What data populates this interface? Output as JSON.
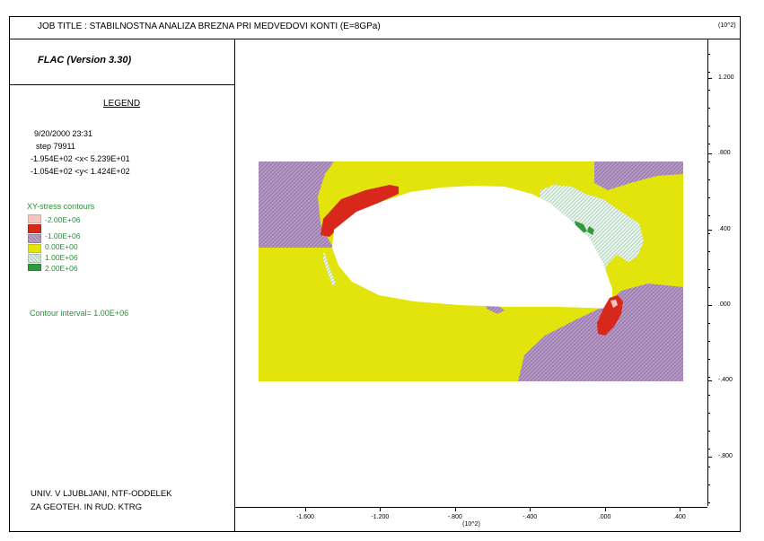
{
  "header": {
    "job_title": "JOB TITLE :  STABILNOSTNA ANALIZA BREZNA PRI MEDVEDOVI KONTI (E=8GPa)",
    "version": "FLAC (Version 3.30)"
  },
  "legend": {
    "heading": "LEGEND",
    "date": "9/20/2000  23:31",
    "step": "step  79911",
    "x_range": "-1.954E+02 <x<  5.239E+01",
    "y_range": "-1.054E+02 <y<  1.424E+02",
    "contours_title": "XY-stress contours",
    "contour_interval": "Contour interval=  1.00E+06",
    "items": [
      {
        "label": "-2.00E+06",
        "color": "#f5c6c0"
      },
      {
        "label": "-1.00E+06",
        "color": "#d8281c"
      },
      {
        "label": "0.00E+00",
        "color": "#a889b8"
      },
      {
        "label": "1.00E+06",
        "color": "#e3e40c"
      },
      {
        "label": "2.00E+06",
        "color": "#cfe6d6"
      },
      {
        "label": "",
        "color": "#2f9a3a"
      }
    ]
  },
  "footer": {
    "line1": "UNIV. V LJUBLJANI, NTF-ODDELEK",
    "line2": "ZA GEOTEH. IN RUD. KTRG"
  },
  "chart_data": {
    "type": "heatmap",
    "title": "XY-stress contours",
    "x_exponent_label": "(10^2)",
    "y_exponent_label": "(10^2)",
    "x_ticks": [
      {
        "value": -1.6,
        "label": "-1.600"
      },
      {
        "value": -1.2,
        "label": "-1.200"
      },
      {
        "value": -0.8,
        "label": "-.800"
      },
      {
        "value": -0.4,
        "label": "-.400"
      },
      {
        "value": 0.0,
        "label": ".000"
      },
      {
        "value": 0.4,
        "label": ".400"
      }
    ],
    "y_ticks": [
      {
        "value": 1.2,
        "label": "1.200"
      },
      {
        "value": 0.8,
        "label": ".800"
      },
      {
        "value": 0.4,
        "label": ".400"
      },
      {
        "value": 0.0,
        "label": ".000"
      },
      {
        "value": -0.4,
        "label": "-.400"
      },
      {
        "value": -0.8,
        "label": "-.800"
      }
    ],
    "x_range": [
      -1.954,
      0.5239
    ],
    "y_range": [
      -1.054,
      1.424
    ],
    "contour_levels": [
      -2000000.0,
      -1000000.0,
      0.0,
      1000000.0,
      2000000.0
    ],
    "colors": {
      "negative_high": "#d8281c",
      "negative_low": "#a889b8",
      "zero": "#e3e40c",
      "positive_low": "#cfe6d6",
      "positive_high": "#2f9a3a",
      "extreme_negative": "#f5c6c0",
      "cavity": "#ffffff"
    }
  }
}
